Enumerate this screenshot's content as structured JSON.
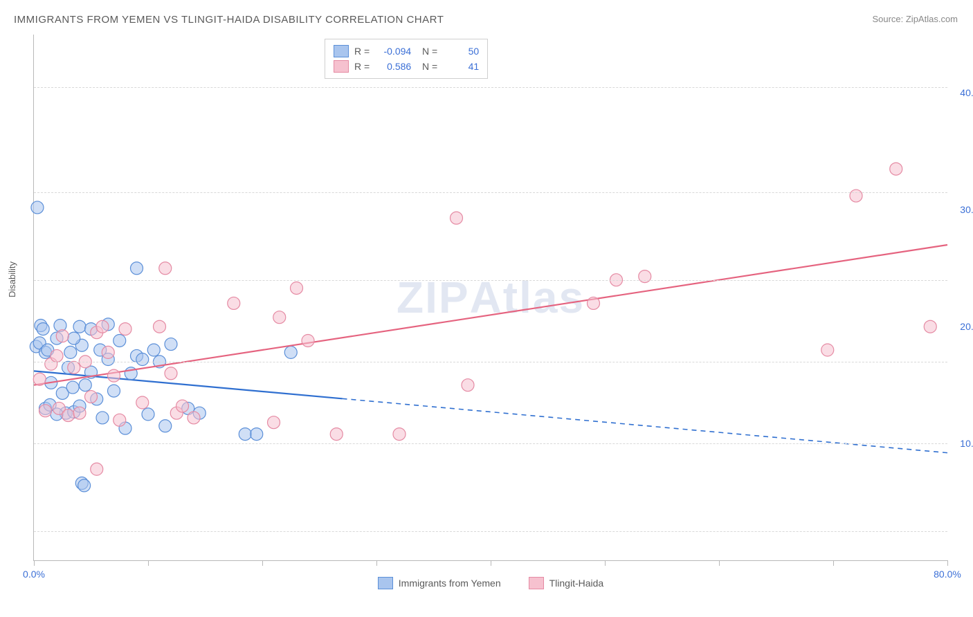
{
  "title": "IMMIGRANTS FROM YEMEN VS TLINGIT-HAIDA DISABILITY CORRELATION CHART",
  "source": "Source: ZipAtlas.com",
  "ylabel": "Disability",
  "watermark": "ZIPAtlas",
  "chart": {
    "type": "scatter",
    "xlim": [
      0,
      80
    ],
    "ylim": [
      0,
      45
    ],
    "xtick_labels": [
      {
        "v": 0,
        "t": "0.0%"
      },
      {
        "v": 80,
        "t": "80.0%"
      }
    ],
    "xtick_positions": [
      0,
      10,
      20,
      30,
      40,
      50,
      60,
      70,
      80
    ],
    "ytick_labels": [
      {
        "v": 10,
        "t": "10.0%"
      },
      {
        "v": 20,
        "t": "20.0%"
      },
      {
        "v": 30,
        "t": "30.0%"
      },
      {
        "v": 40,
        "t": "40.0%"
      }
    ],
    "grid_y": [
      2.5,
      10,
      17,
      24,
      31.5,
      40.5
    ],
    "grid_color": "#d8d8d8",
    "background_color": "#ffffff",
    "marker_radius": 9,
    "marker_opacity": 0.55,
    "line_width": 2.2,
    "series": [
      {
        "name": "Immigrants from Yemen",
        "color_fill": "#a9c5ee",
        "color_stroke": "#5b8fd8",
        "line_color": "#2f6fd0",
        "R": "-0.094",
        "N": "50",
        "trend": {
          "x1": 0,
          "y1": 16.2,
          "x2": 80,
          "y2": 9.2,
          "solid_until_x": 27
        },
        "points": [
          [
            0.3,
            30.2
          ],
          [
            0.2,
            18.3
          ],
          [
            0.5,
            18.6
          ],
          [
            0.6,
            20.1
          ],
          [
            0.8,
            19.8
          ],
          [
            1.0,
            17.8
          ],
          [
            1.2,
            18.0
          ],
          [
            1.0,
            13.0
          ],
          [
            1.4,
            13.3
          ],
          [
            1.5,
            15.2
          ],
          [
            2.0,
            19.0
          ],
          [
            2.3,
            20.1
          ],
          [
            2.5,
            14.3
          ],
          [
            2.8,
            12.6
          ],
          [
            3.0,
            16.5
          ],
          [
            3.2,
            17.8
          ],
          [
            3.4,
            14.8
          ],
          [
            3.5,
            12.7
          ],
          [
            4.0,
            13.2
          ],
          [
            4.0,
            20.0
          ],
          [
            4.2,
            18.4
          ],
          [
            4.5,
            15.0
          ],
          [
            5.0,
            16.1
          ],
          [
            5.0,
            19.8
          ],
          [
            5.5,
            13.8
          ],
          [
            5.8,
            18.0
          ],
          [
            6.0,
            12.2
          ],
          [
            6.5,
            17.2
          ],
          [
            7.0,
            14.5
          ],
          [
            7.5,
            18.8
          ],
          [
            8.0,
            11.3
          ],
          [
            8.5,
            16.0
          ],
          [
            9.0,
            17.5
          ],
          [
            9.5,
            17.2
          ],
          [
            10.0,
            12.5
          ],
          [
            10.5,
            18.0
          ],
          [
            11.0,
            17.0
          ],
          [
            11.5,
            11.5
          ],
          [
            12.0,
            18.5
          ],
          [
            9.0,
            25.0
          ],
          [
            13.5,
            13.0
          ],
          [
            14.5,
            12.6
          ],
          [
            18.5,
            10.8
          ],
          [
            19.5,
            10.8
          ],
          [
            22.5,
            17.8
          ],
          [
            4.2,
            6.6
          ],
          [
            4.4,
            6.4
          ],
          [
            3.5,
            19.0
          ],
          [
            6.5,
            20.2
          ],
          [
            2.0,
            12.5
          ]
        ]
      },
      {
        "name": "Tlingit-Haida",
        "color_fill": "#f6c1cf",
        "color_stroke": "#e58aa3",
        "line_color": "#e5637f",
        "R": "0.586",
        "N": "41",
        "trend": {
          "x1": 0,
          "y1": 15.0,
          "x2": 80,
          "y2": 27.0,
          "solid_until_x": 80
        },
        "points": [
          [
            0.5,
            15.5
          ],
          [
            1.0,
            12.8
          ],
          [
            1.5,
            16.8
          ],
          [
            2.0,
            17.5
          ],
          [
            2.2,
            13.0
          ],
          [
            2.5,
            19.2
          ],
          [
            3.0,
            12.4
          ],
          [
            3.5,
            16.5
          ],
          [
            4.0,
            12.6
          ],
          [
            4.5,
            17.0
          ],
          [
            5.0,
            14.0
          ],
          [
            5.5,
            19.5
          ],
          [
            6.0,
            20.0
          ],
          [
            6.5,
            17.8
          ],
          [
            7.0,
            15.8
          ],
          [
            7.5,
            12.0
          ],
          [
            8.0,
            19.8
          ],
          [
            9.5,
            13.5
          ],
          [
            11.0,
            20.0
          ],
          [
            11.5,
            25.0
          ],
          [
            12.0,
            16.0
          ],
          [
            12.5,
            12.6
          ],
          [
            13.0,
            13.2
          ],
          [
            5.5,
            7.8
          ],
          [
            17.5,
            22.0
          ],
          [
            21.0,
            11.8
          ],
          [
            23.0,
            23.3
          ],
          [
            21.5,
            20.8
          ],
          [
            24.0,
            18.8
          ],
          [
            26.5,
            10.8
          ],
          [
            32.0,
            10.8
          ],
          [
            37.0,
            29.3
          ],
          [
            38.0,
            15.0
          ],
          [
            49.0,
            22.0
          ],
          [
            51.0,
            24.0
          ],
          [
            53.5,
            24.3
          ],
          [
            69.5,
            18.0
          ],
          [
            72.0,
            31.2
          ],
          [
            75.5,
            33.5
          ],
          [
            78.5,
            20.0
          ],
          [
            14.0,
            12.2
          ]
        ]
      }
    ]
  },
  "legend_bottom": [
    {
      "label": "Immigrants from Yemen",
      "fill": "#a9c5ee",
      "stroke": "#5b8fd8"
    },
    {
      "label": "Tlingit-Haida",
      "fill": "#f6c1cf",
      "stroke": "#e58aa3"
    }
  ]
}
